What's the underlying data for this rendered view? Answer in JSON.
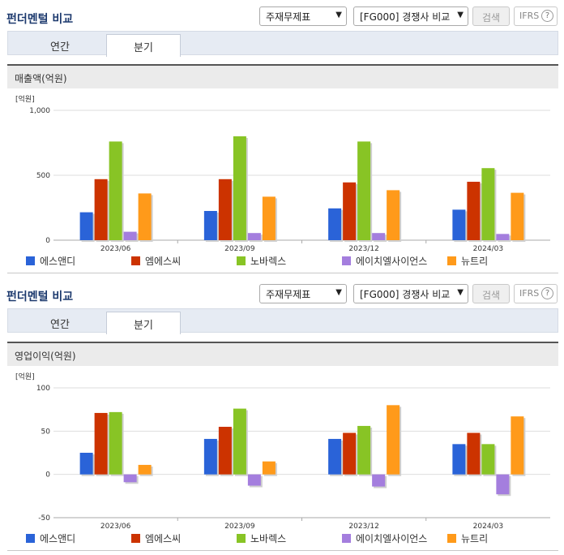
{
  "colors": [
    "#2a63d8",
    "#cc3300",
    "#88c425",
    "#a47ede",
    "#ff9a1a"
  ],
  "panels": [
    {
      "header": {
        "title": "펀더멘털 비교",
        "select1": "주재무제표",
        "select2": "[FG000] 경쟁사 비교",
        "search_label": "검색",
        "ifrs_label": "IFRS",
        "help": "?"
      },
      "tabs": [
        {
          "label": "연간"
        },
        {
          "label": "분기"
        }
      ],
      "metric": "매출액(억원)",
      "chart_data": {
        "type": "bar",
        "ylabel": "[억원]",
        "ylim": [
          0,
          1000
        ],
        "yticks": [
          0,
          500,
          1000
        ],
        "ytick_labels": [
          "0",
          "500",
          "1,000"
        ],
        "categories": [
          "2023/06",
          "2023/09",
          "2023/12",
          "2024/03"
        ],
        "series": [
          {
            "name": "에스앤디",
            "values": [
              215,
              225,
              245,
              235
            ]
          },
          {
            "name": "엠에스씨",
            "values": [
              470,
              470,
              445,
              450
            ]
          },
          {
            "name": "노바렉스",
            "values": [
              760,
              800,
              760,
              555
            ]
          },
          {
            "name": "에이치엘사이언스",
            "values": [
              65,
              55,
              55,
              48
            ]
          },
          {
            "name": "뉴트리",
            "values": [
              360,
              335,
              385,
              365
            ]
          }
        ]
      }
    },
    {
      "header": {
        "title": "펀더멘털 비교",
        "select1": "주재무제표",
        "select2": "[FG000] 경쟁사 비교",
        "search_label": "검색",
        "ifrs_label": "IFRS",
        "help": "?"
      },
      "tabs": [
        {
          "label": "연간"
        },
        {
          "label": "분기"
        }
      ],
      "metric": "영업이익(억원)",
      "chart_data": {
        "type": "bar",
        "ylabel": "[억원]",
        "ylim": [
          -50,
          100
        ],
        "yticks": [
          -50,
          0,
          50,
          100
        ],
        "ytick_labels": [
          "-50",
          "0",
          "50",
          "100"
        ],
        "categories": [
          "2023/06",
          "2023/09",
          "2023/12",
          "2024/03"
        ],
        "series": [
          {
            "name": "에스앤디",
            "values": [
              25,
              41,
              41,
              35
            ]
          },
          {
            "name": "엠에스씨",
            "values": [
              71,
              55,
              48,
              48
            ]
          },
          {
            "name": "노바렉스",
            "values": [
              72,
              76,
              56,
              35
            ]
          },
          {
            "name": "에이치엘사이언스",
            "values": [
              -9,
              -13,
              -14,
              -23
            ]
          },
          {
            "name": "뉴트리",
            "values": [
              11,
              15,
              80,
              67
            ]
          }
        ]
      }
    }
  ]
}
